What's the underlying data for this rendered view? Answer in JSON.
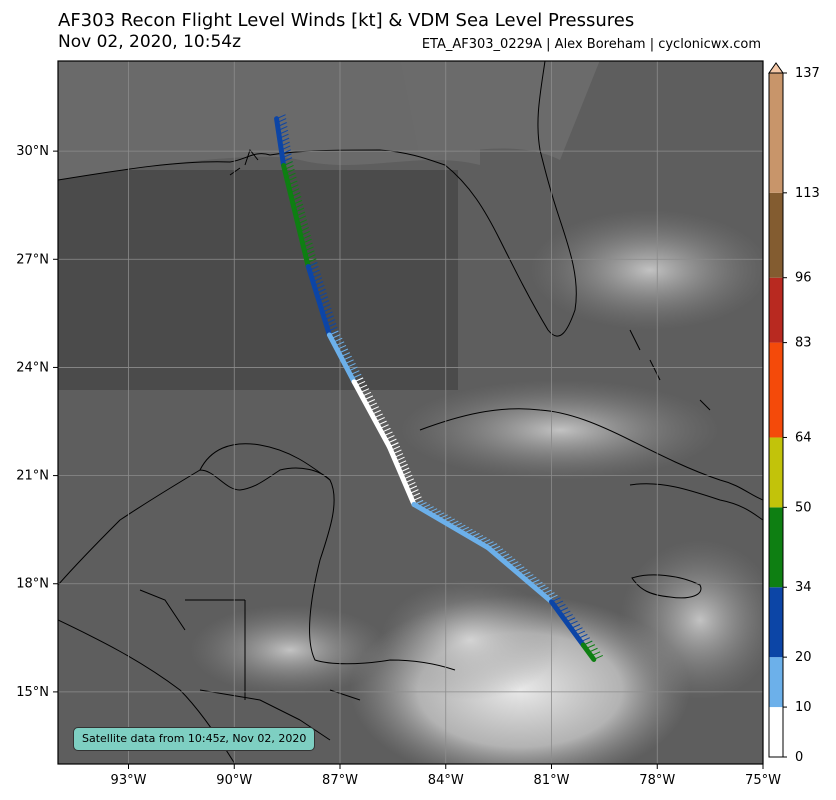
{
  "header": {
    "title": "AF303 Recon Flight Level Winds [kt] & VDM Sea Level Pressures",
    "subtitle": "Nov 02, 2020, 10:54z",
    "credit": "ETA_AF303_0229A | Alex Boreham | cyclonicwx.com"
  },
  "map": {
    "lon_range": [
      -95,
      -75
    ],
    "lat_range": [
      13,
      32.5
    ],
    "x_ticks": [
      {
        "lon": -93,
        "label": "93°W"
      },
      {
        "lon": -90,
        "label": "90°W"
      },
      {
        "lon": -87,
        "label": "87°W"
      },
      {
        "lon": -84,
        "label": "84°W"
      },
      {
        "lon": -81,
        "label": "81°W"
      },
      {
        "lon": -78,
        "label": "78°W"
      },
      {
        "lon": -75,
        "label": "75°W"
      }
    ],
    "y_ticks": [
      {
        "lat": 30,
        "label": "30°N"
      },
      {
        "lat": 27,
        "label": "27°N"
      },
      {
        "lat": 24,
        "label": "24°N"
      },
      {
        "lat": 21,
        "label": "21°N"
      },
      {
        "lat": 18,
        "label": "18°N"
      },
      {
        "lat": 15,
        "label": "15°N"
      }
    ],
    "gridlines": true,
    "satellite_label": "Satellite data from 10:45z, Nov 02, 2020"
  },
  "colorbar": {
    "levels": [
      0,
      10,
      20,
      34,
      50,
      64,
      83,
      96,
      113,
      137
    ],
    "colors": [
      "#ffffff",
      "#6cb0ea",
      "#0c45a6",
      "#0e7f12",
      "#c2c30a",
      "#f44a0a",
      "#b82920",
      "#835c30",
      "#c8956a"
    ]
  },
  "flight_track": {
    "segments": [
      {
        "from": [
          -88.8,
          30.9
        ],
        "to": [
          -88.6,
          29.6
        ],
        "wind_kt": 30
      },
      {
        "from": [
          -88.6,
          29.6
        ],
        "to": [
          -87.9,
          26.8
        ],
        "wind_kt": 38
      },
      {
        "from": [
          -87.9,
          26.8
        ],
        "to": [
          -87.3,
          24.9
        ],
        "wind_kt": 27
      },
      {
        "from": [
          -87.3,
          24.9
        ],
        "to": [
          -86.6,
          23.6
        ],
        "wind_kt": 16
      },
      {
        "from": [
          -86.6,
          23.6
        ],
        "to": [
          -85.6,
          21.8
        ],
        "wind_kt": 8
      },
      {
        "from": [
          -85.6,
          21.8
        ],
        "to": [
          -84.9,
          20.2
        ],
        "wind_kt": 6
      },
      {
        "from": [
          -84.9,
          20.2
        ],
        "to": [
          -82.8,
          19.0
        ],
        "wind_kt": 14
      },
      {
        "from": [
          -82.8,
          19.0
        ],
        "to": [
          -81.0,
          17.5
        ],
        "wind_kt": 15
      },
      {
        "from": [
          -81.0,
          17.5
        ],
        "to": [
          -80.1,
          16.3
        ],
        "wind_kt": 25
      },
      {
        "from": [
          -80.1,
          16.3
        ],
        "to": [
          -79.8,
          15.9
        ],
        "wind_kt": 40
      }
    ]
  }
}
